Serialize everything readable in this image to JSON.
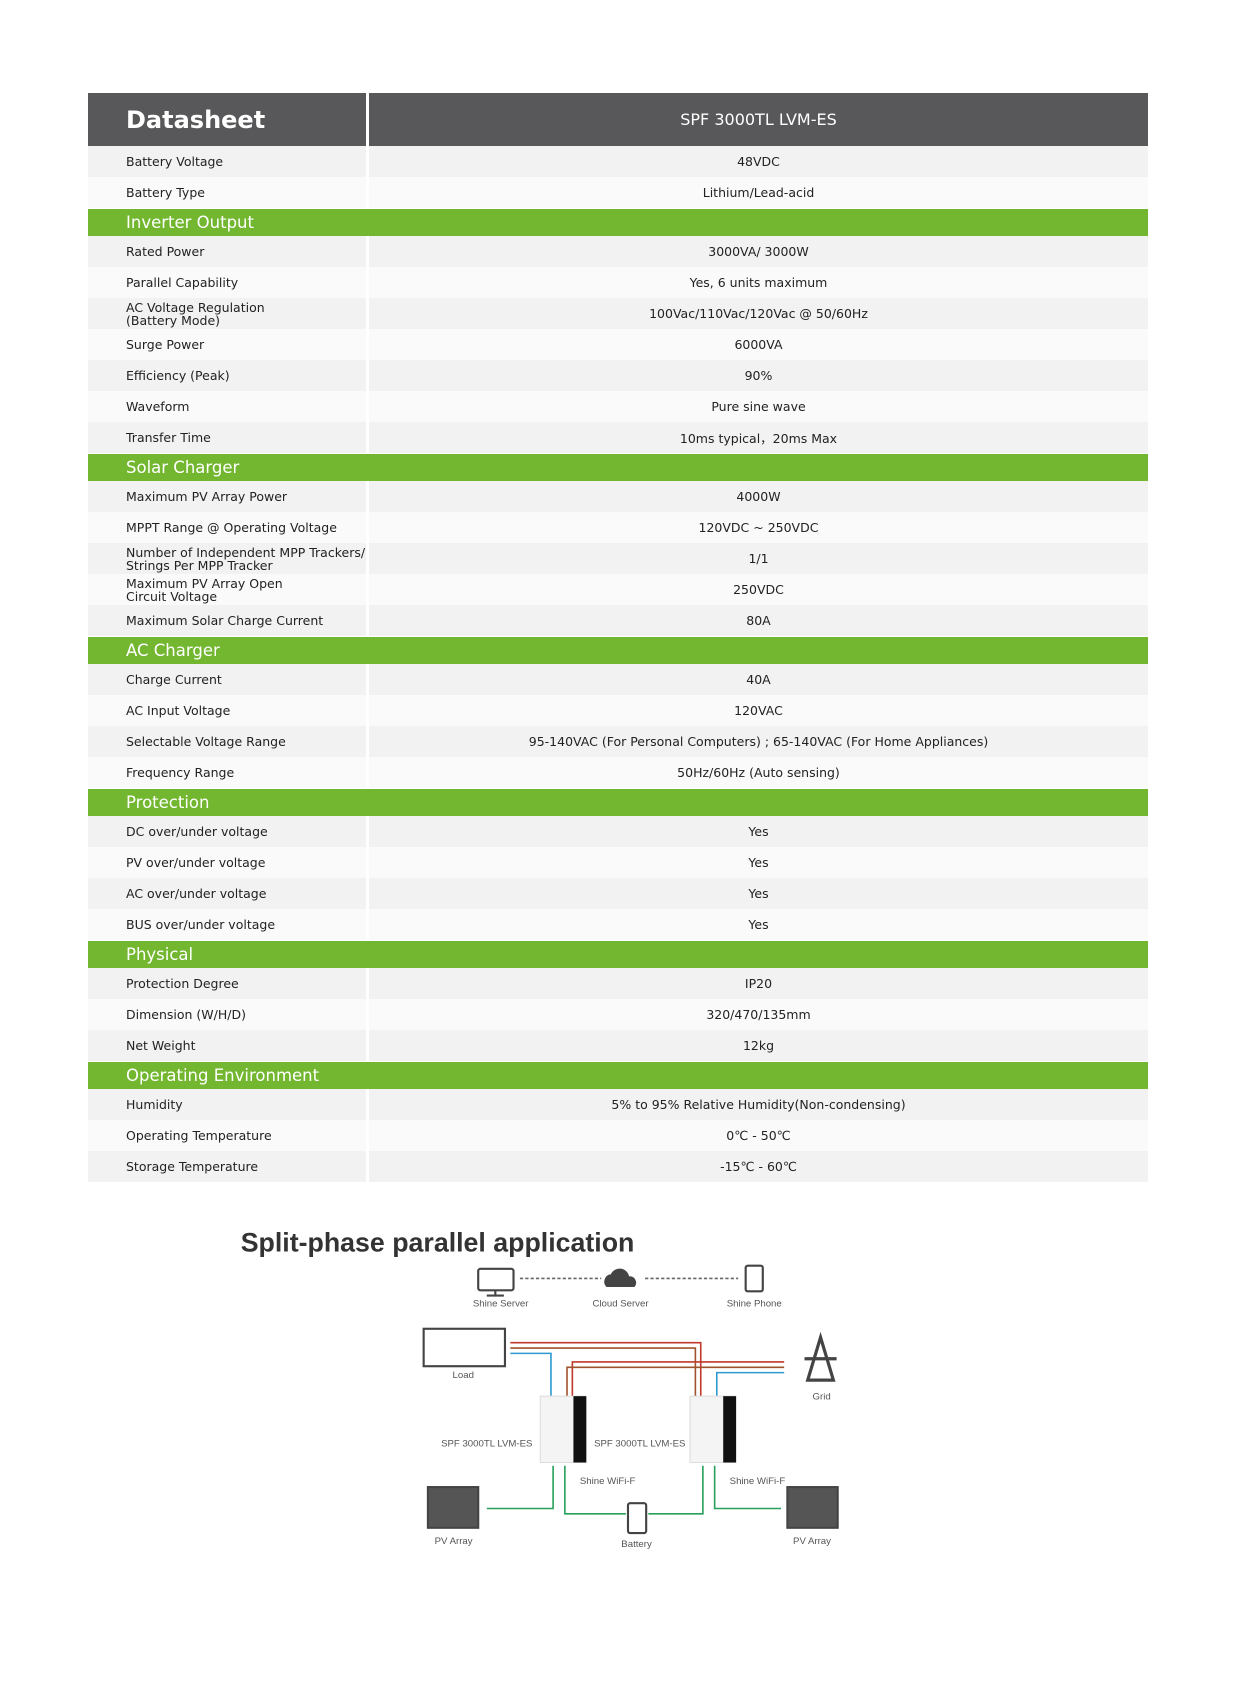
{
  "header": {
    "title": "Datasheet",
    "model": "SPF 3000TL LVM-ES"
  },
  "general_rows": [
    [
      "Battery Voltage",
      "48VDC"
    ],
    [
      "Battery Type",
      "Lithium/Lead-acid"
    ]
  ],
  "sections": [
    {
      "title": "Inverter Output",
      "rows": [
        [
          "Rated Power",
          "3000VA/ 3000W"
        ],
        [
          "Parallel Capability",
          "Yes, 6 units maximum"
        ],
        [
          "AC Voltage Regulation\n(Battery Mode)",
          "100Vac/110Vac/120Vac @ 50/60Hz"
        ],
        [
          "Surge Power",
          "6000VA"
        ],
        [
          "Efficiency (Peak)",
          "90%"
        ],
        [
          "Waveform",
          "Pure sine wave"
        ],
        [
          "Transfer Time",
          "10ms typical，20ms Max"
        ]
      ]
    },
    {
      "title": "Solar Charger",
      "rows": [
        [
          "Maximum PV Array Power",
          "4000W"
        ],
        [
          "MPPT Range @ Operating Voltage",
          "120VDC ~ 250VDC"
        ],
        [
          "Number of Independent MPP Trackers/\nStrings Per MPP Tracker",
          "1/1"
        ],
        [
          "Maximum PV Array Open\nCircuit Voltage",
          "250VDC"
        ],
        [
          "Maximum Solar Charge Current",
          "80A"
        ]
      ]
    },
    {
      "title": "AC Charger",
      "rows": [
        [
          "Charge Current",
          "40A"
        ],
        [
          "AC Input Voltage",
          "120VAC"
        ],
        [
          "Selectable Voltage Range",
          "95-140VAC (For Personal Computers) ; 65-140VAC (For Home Appliances)"
        ],
        [
          "Frequency Range",
          "50Hz/60Hz (Auto sensing)"
        ]
      ]
    },
    {
      "title": "Protection",
      "rows": [
        [
          "DC over/under voltage",
          "Yes"
        ],
        [
          "PV over/under voltage",
          "Yes"
        ],
        [
          "AC over/under voltage",
          "Yes"
        ],
        [
          "BUS  over/under voltage",
          "Yes"
        ]
      ]
    },
    {
      "title": "Physical",
      "rows": [
        [
          "Protection Degree",
          "IP20"
        ],
        [
          "Dimension (W/H/D)",
          "320/470/135mm"
        ],
        [
          "Net Weight",
          "12kg"
        ]
      ]
    },
    {
      "title": "Operating Environment",
      "rows": [
        [
          "Humidity",
          "5% to 95% Relative Humidity(Non-condensing)"
        ],
        [
          "Operating Temperature",
          "0℃ - 50℃"
        ],
        [
          "Storage Temperature",
          "-15℃ - 60℃"
        ]
      ]
    }
  ],
  "diagram": {
    "title": "Split-phase  parallel application",
    "shine_server": "Shine Server",
    "cloud_server": "Cloud Server",
    "shine_phone": "Shine Phone",
    "load": "Load",
    "grid": "Grid",
    "inverters": [
      "SPF 3000TL LVM-ES",
      "SPF 3000TL LVM-ES"
    ],
    "wifi": [
      "Shine WiFi-F",
      "Shine WiFi-F"
    ],
    "pv_arrays": [
      "PV Array",
      "PV Array"
    ],
    "battery": "Battery"
  }
}
